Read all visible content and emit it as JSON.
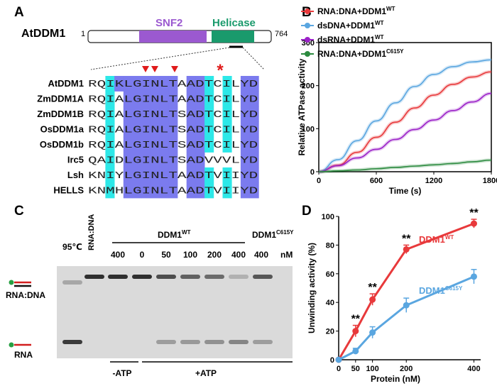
{
  "panel_labels": {
    "a": "A",
    "b": "B",
    "c": "C",
    "d": "D"
  },
  "panel_a": {
    "protein_name": "AtDDM1",
    "start_num": "1",
    "end_num": "764",
    "domains": [
      {
        "name": "SNF2",
        "color": "#9b59d0"
      },
      {
        "name": "Helicase",
        "color": "#1a9a6c"
      }
    ],
    "star": "*",
    "species": [
      "AtDDM1",
      "ZmDDM1A",
      "ZmDDM1B",
      "OsDDM1a",
      "OsDDM1b",
      "Irc5",
      "Lsh",
      "HELLS"
    ],
    "sequences": [
      "RQIKLGINLTAADTCILYD",
      "RQIALGINLTAADTCILYD",
      "RQIALGINLTSADTCILYD",
      "RQIALGINLTSADTCILYD",
      "RQIALGINLTSADTCILYD",
      "QAIDLGINLTSADVVVLYD",
      "KNIYLGINLTAADTVIIYD",
      "KNMHLGINLTAADTVIIYD"
    ],
    "column_colors": [
      "",
      "",
      "cyan",
      "",
      "purple",
      "purple",
      "purple",
      "purple",
      "purple",
      "purple",
      "",
      "purple",
      "purple",
      "cyan",
      "",
      "cyan",
      "",
      "purple",
      "purple"
    ],
    "cell_overrides": [
      {
        "row": 5,
        "col": 13,
        "color": ""
      },
      {
        "row": 5,
        "col": 15,
        "color": ""
      },
      {
        "row": 0,
        "col": 3,
        "color": "purple"
      },
      {
        "row": 0,
        "col": 10,
        "color": ""
      }
    ],
    "colors": {
      "purple": "#7b7bee",
      "cyan": "#2de8e8"
    }
  },
  "panel_b": {
    "chart_data": {
      "type": "line",
      "xlabel": "Time (s)",
      "ylabel": "Relative ATPase activity",
      "xlim": [
        0,
        1800
      ],
      "ylim": [
        0,
        300
      ],
      "xticks": [
        "0",
        "600",
        "1200",
        "1800"
      ],
      "yticks": [
        "0",
        "100",
        "200",
        "300"
      ],
      "legend_position": "top-left",
      "series": [
        {
          "name": "RNA:DNA+DDM1",
          "sup": "WT",
          "color": "#e8393b",
          "x": [
            0,
            200,
            400,
            600,
            800,
            1000,
            1200,
            1400,
            1600,
            1800
          ],
          "y": [
            0,
            15,
            45,
            80,
            115,
            148,
            178,
            203,
            220,
            232
          ]
        },
        {
          "name": "dsDNA+DDM1",
          "sup": "WT",
          "color": "#5aa6e0",
          "x": [
            0,
            200,
            400,
            600,
            800,
            1000,
            1200,
            1400,
            1600,
            1800
          ],
          "y": [
            0,
            28,
            72,
            118,
            160,
            198,
            226,
            244,
            255,
            260
          ]
        },
        {
          "name": "dsRNA+DDM1",
          "sup": "WT",
          "color": "#9b22c8",
          "x": [
            0,
            200,
            400,
            600,
            800,
            1000,
            1200,
            1400,
            1600,
            1800
          ],
          "y": [
            0,
            14,
            32,
            52,
            75,
            98,
            120,
            142,
            162,
            182
          ]
        },
        {
          "name": "RNA:DNA+DDM1",
          "sup": "C615Y",
          "color": "#2b8a3e",
          "x": [
            0,
            200,
            400,
            600,
            800,
            1000,
            1200,
            1400,
            1600,
            1800
          ],
          "y": [
            0,
            2,
            4,
            7,
            10,
            13,
            16,
            19,
            23,
            27
          ]
        }
      ]
    }
  },
  "panel_c": {
    "top_labels": {
      "heat": "95℃",
      "rnadna": "RNA:DNA",
      "wt": "DDM1",
      "wt_sup": "WT",
      "mut": "DDM1",
      "mut_sup": "C615Y"
    },
    "lane_values": [
      "400",
      "0",
      "50",
      "100",
      "200",
      "400",
      "400"
    ],
    "unit": "nM",
    "side_labels": {
      "duplex": "RNA:DNA",
      "single": "RNA"
    },
    "bottom_labels": {
      "minus": "-ATP",
      "plus": "+ATP"
    }
  },
  "panel_d": {
    "chart_data": {
      "type": "line",
      "xlabel": "Protein (nM)",
      "ylabel": "Unwinding activity (%)",
      "xlim": [
        0,
        420
      ],
      "ylim": [
        0,
        100
      ],
      "xticks": [
        "0",
        "50",
        "100",
        "200",
        "400"
      ],
      "yticks": [
        "0",
        "20",
        "40",
        "60",
        "80",
        "100"
      ],
      "significance": "**",
      "series": [
        {
          "name": "DDM1",
          "sup": "WT",
          "color": "#e8393b",
          "x": [
            0,
            50,
            100,
            200,
            400
          ],
          "y": [
            0,
            20,
            42,
            77,
            95
          ],
          "err": [
            0,
            4,
            4,
            3,
            3
          ]
        },
        {
          "name": "DDM1",
          "sup": "C615Y",
          "color": "#5aa6e0",
          "x": [
            0,
            50,
            100,
            200,
            400
          ],
          "y": [
            0,
            6,
            19,
            38,
            58
          ],
          "err": [
            0,
            2,
            4,
            5,
            5
          ]
        }
      ]
    }
  }
}
